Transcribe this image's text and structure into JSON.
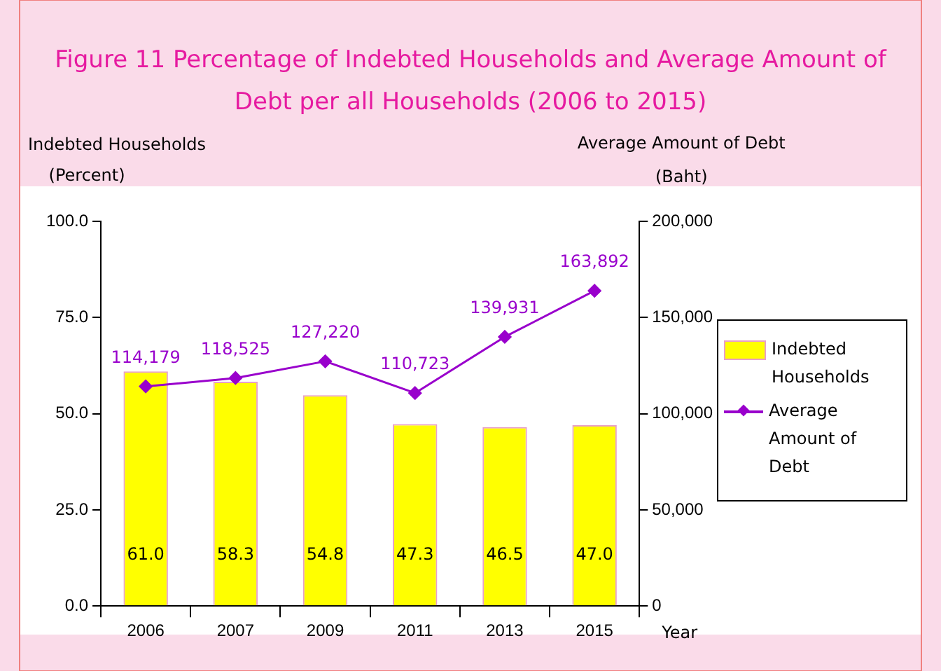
{
  "chart_data": {
    "type": "bar",
    "title": "Figure   11   Percentage of Indebted Households and Average Amount of Debt per all Households   (2006 to 2015)",
    "ylabel": "Indebted Households (Percent)",
    "y2label": "Average Amount of Debt (Baht)",
    "xlabel": "Year",
    "categories": [
      "2006",
      "2007",
      "2009",
      "2011",
      "2013",
      "2015"
    ],
    "series": [
      {
        "name": "Indebted Households",
        "color": "#ffff00",
        "values": [
          61.0,
          58.3,
          54.8,
          47.3,
          46.5,
          47.0
        ],
        "value_labels": [
          "61.0",
          "58.3",
          "54.8",
          "47.3",
          "46.5",
          "47.0"
        ]
      },
      {
        "name": "Average Amount of Debt",
        "type": "line",
        "axis": "y2",
        "color": "#9900cc",
        "marker": "diamond",
        "values": [
          114179,
          118525,
          127220,
          110723,
          139931,
          163892
        ],
        "value_labels": [
          "114,179",
          "118,525",
          "127,220",
          "110,723",
          "139,931",
          "163,892"
        ]
      }
    ],
    "ylim": [
      0,
      100
    ],
    "yticks": [
      {
        "value": 0,
        "label": "0.0"
      },
      {
        "value": 25,
        "label": "25.0"
      },
      {
        "value": 50,
        "label": "50.0"
      },
      {
        "value": 75,
        "label": "75.0"
      },
      {
        "value": 100,
        "label": "100.0"
      }
    ],
    "y2lim": [
      0,
      200000
    ],
    "y2ticks": [
      0,
      {
        "value": 50000,
        "label": "50,000"
      },
      {
        "value": 100000,
        "label": "100,000"
      },
      {
        "value": 150000,
        "label": "150,000"
      },
      {
        "value": 200000,
        "label": "200,000"
      }
    ],
    "grid": false,
    "legend": "right"
  }
}
